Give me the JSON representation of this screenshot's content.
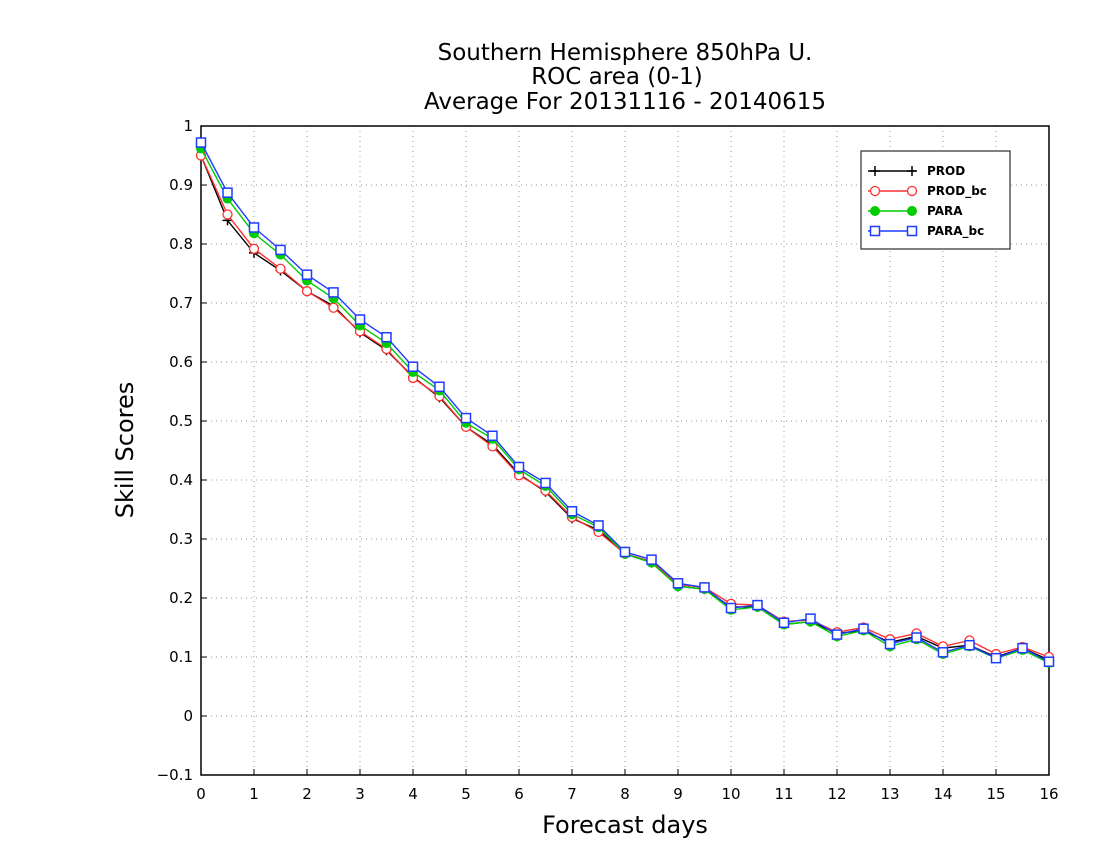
{
  "chart_data": {
    "type": "line",
    "title": [
      "Southern Hemisphere 850hPa U.",
      "ROC area (0-1)",
      "Average For 20131116 - 20140615"
    ],
    "xlabel": "Forecast days",
    "ylabel": "Skill Scores",
    "xlim": [
      0,
      16
    ],
    "ylim": [
      -0.1,
      1
    ],
    "xticks": [
      "0",
      "1",
      "2",
      "3",
      "4",
      "5",
      "6",
      "7",
      "8",
      "9",
      "10",
      "11",
      "12",
      "13",
      "14",
      "15",
      "16"
    ],
    "yticks": [
      "−0.1",
      "0",
      "0.1",
      "0.2",
      "0.3",
      "0.4",
      "0.5",
      "0.6",
      "0.7",
      "0.8",
      "0.9",
      "1"
    ],
    "grid": true,
    "legend_position": "top-right",
    "x": [
      0,
      0.5,
      1,
      1.5,
      2,
      2.5,
      3,
      3.5,
      4,
      4.5,
      5,
      5.5,
      6,
      6.5,
      7,
      7.5,
      8,
      8.5,
      9,
      9.5,
      10,
      10.5,
      11,
      11.5,
      12,
      12.5,
      13,
      13.5,
      14,
      14.5,
      15,
      15.5,
      16
    ],
    "series": [
      {
        "name": "PROD",
        "color": "#000000",
        "marker": "plus",
        "values": [
          0.95,
          0.84,
          0.785,
          0.755,
          0.72,
          0.695,
          0.65,
          0.62,
          0.575,
          0.54,
          0.49,
          0.46,
          0.41,
          0.38,
          0.335,
          0.315,
          0.275,
          0.26,
          0.22,
          0.215,
          0.185,
          0.185,
          0.155,
          0.16,
          0.14,
          0.145,
          0.125,
          0.135,
          0.115,
          0.12,
          0.1,
          0.115,
          0.095
        ]
      },
      {
        "name": "PROD_bc",
        "color": "#ff3030",
        "marker": "open-circle",
        "values": [
          0.95,
          0.85,
          0.792,
          0.758,
          0.72,
          0.692,
          0.652,
          0.622,
          0.573,
          0.542,
          0.49,
          0.457,
          0.408,
          0.382,
          0.337,
          0.312,
          0.275,
          0.262,
          0.223,
          0.218,
          0.19,
          0.188,
          0.16,
          0.163,
          0.142,
          0.15,
          0.13,
          0.14,
          0.118,
          0.128,
          0.105,
          0.117,
          0.1
        ]
      },
      {
        "name": "PARA",
        "color": "#00cc00",
        "marker": "filled-circle",
        "values": [
          0.962,
          0.877,
          0.818,
          0.782,
          0.738,
          0.708,
          0.662,
          0.632,
          0.583,
          0.552,
          0.497,
          0.47,
          0.418,
          0.39,
          0.342,
          0.32,
          0.275,
          0.26,
          0.22,
          0.215,
          0.18,
          0.185,
          0.155,
          0.16,
          0.135,
          0.145,
          0.118,
          0.13,
          0.105,
          0.118,
          0.098,
          0.112,
          0.09
        ]
      },
      {
        "name": "PARA_bc",
        "color": "#1e3cff",
        "marker": "open-square",
        "values": [
          0.972,
          0.887,
          0.828,
          0.79,
          0.748,
          0.718,
          0.672,
          0.642,
          0.592,
          0.558,
          0.505,
          0.475,
          0.422,
          0.395,
          0.347,
          0.323,
          0.278,
          0.265,
          0.225,
          0.218,
          0.183,
          0.188,
          0.158,
          0.165,
          0.138,
          0.148,
          0.122,
          0.133,
          0.108,
          0.12,
          0.098,
          0.115,
          0.092
        ]
      }
    ]
  }
}
